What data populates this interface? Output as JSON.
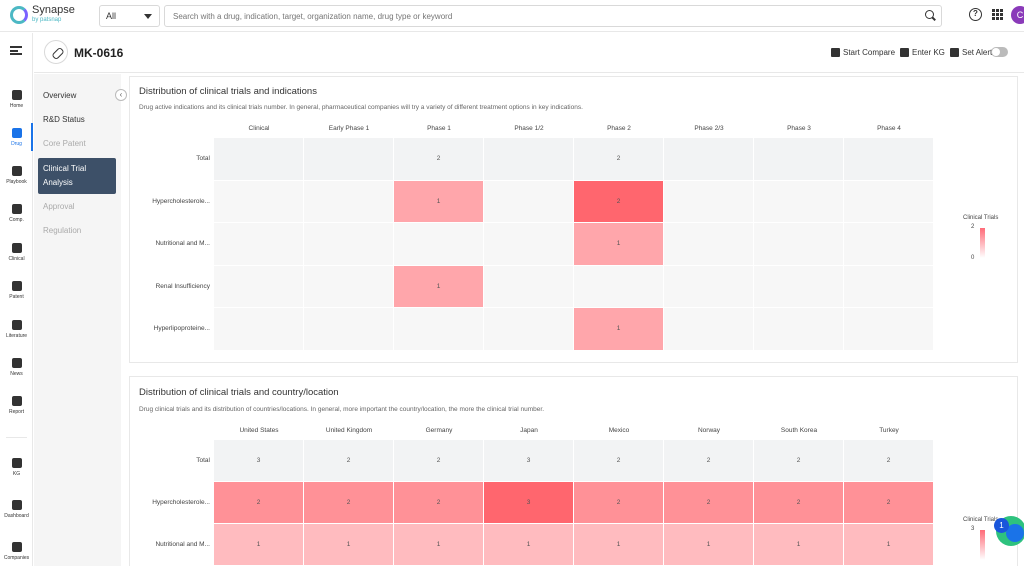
{
  "brand": {
    "name": "Synapse",
    "sub": "by patsnap"
  },
  "search": {
    "scope": "All",
    "placeholder": "Search with a drug, indication, target, organization name, drug type or keyword"
  },
  "avatar": "C",
  "rail": [
    "Home",
    "Drug",
    "Playbook",
    "Comp.",
    "Clinical",
    "Patent",
    "Literature",
    "News",
    "Report",
    "KG",
    "Dashboard",
    "Companies"
  ],
  "drug": {
    "name": "MK-0616"
  },
  "actions": {
    "compare": "Start Compare",
    "kg": "Enter KG",
    "alert": "Set Alert"
  },
  "subnav": {
    "overview": "Overview",
    "rd": "R&D Status",
    "patent": "Core Patent",
    "clinical": "Clinical Trial Analysis",
    "approval": "Approval",
    "regulation": "Regulation"
  },
  "indications": {
    "title": "Distribution of clinical trials and indications",
    "desc": "Drug active indications and its clinical trials number. In general, pharmaceutical companies will try a variety of different treatment options in key indications.",
    "columns": [
      "Clinical",
      "Early Phase 1",
      "Phase 1",
      "Phase 1/2",
      "Phase 2",
      "Phase 2/3",
      "Phase 3",
      "Phase 4"
    ],
    "rows": [
      "Total",
      "Hypercholesterole...",
      "Nutritional and M...",
      "Renal Insufficiency",
      "Hyperlipoproteine..."
    ],
    "values": [
      [
        null,
        null,
        2,
        null,
        2,
        null,
        null,
        null
      ],
      [
        null,
        null,
        1,
        null,
        2,
        null,
        null,
        null
      ],
      [
        null,
        null,
        null,
        null,
        1,
        null,
        null,
        null
      ],
      [
        null,
        null,
        1,
        null,
        null,
        null,
        null,
        null
      ],
      [
        null,
        null,
        null,
        null,
        1,
        null,
        null,
        null
      ]
    ],
    "legend": {
      "title": "Clinical Trials",
      "max": "2",
      "min": "0"
    }
  },
  "countries": {
    "title": "Distribution of clinical trials and country/location",
    "desc": "Drug clinical trials and its distribution of countries/locations. In general, more important the country/location, the more the clinical trial number.",
    "columns": [
      "United States",
      "United Kingdom",
      "Germany",
      "Japan",
      "Mexico",
      "Norway",
      "South Korea",
      "Turkey"
    ],
    "rows": [
      "Total",
      "Hypercholesterole...",
      "Nutritional and M..."
    ],
    "values": [
      [
        3,
        2,
        2,
        3,
        2,
        2,
        2,
        2
      ],
      [
        2,
        2,
        2,
        3,
        2,
        2,
        2,
        2
      ],
      [
        1,
        1,
        1,
        1,
        1,
        1,
        1,
        1
      ]
    ],
    "legend": {
      "title": "Clinical Trials",
      "max": "3"
    }
  },
  "fab_badge": "1"
}
